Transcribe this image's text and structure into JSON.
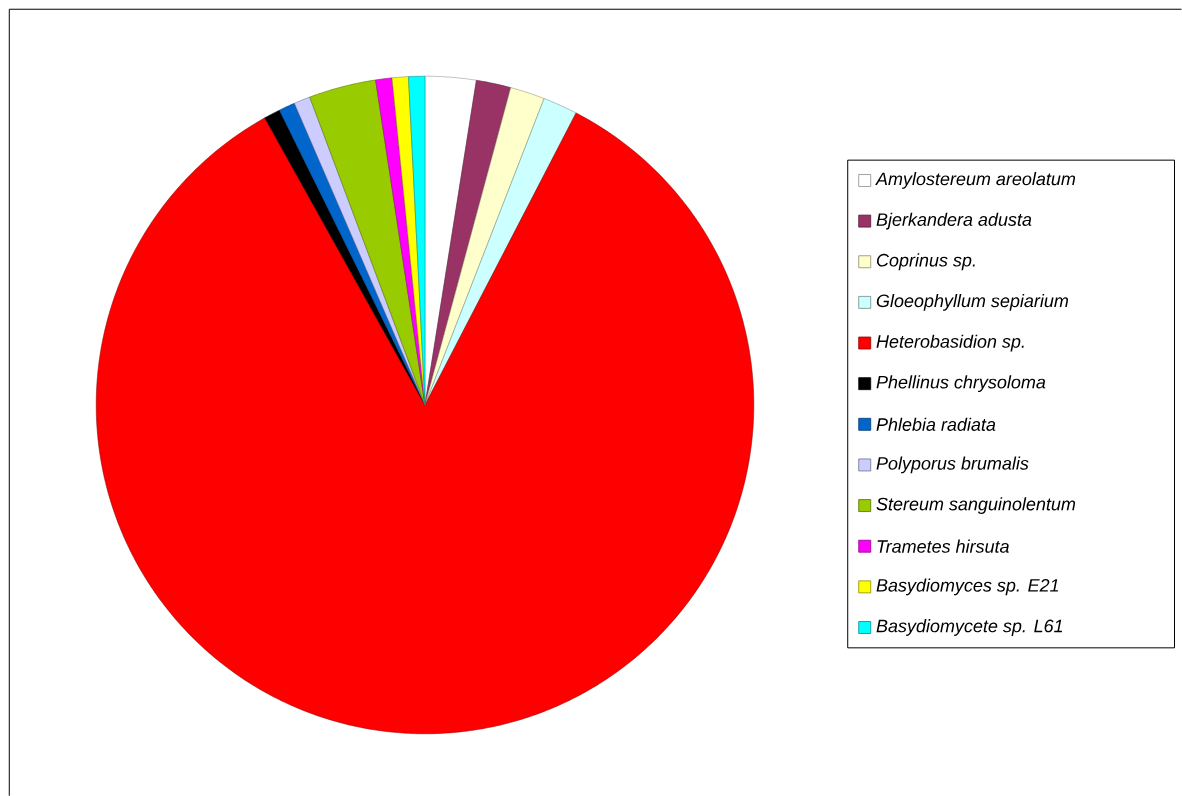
{
  "chart_data": {
    "type": "pie",
    "legend": "right",
    "categories": [
      "Amylostereum areolatum",
      "Bjerkandera adusta",
      "Coprinus sp.",
      "Gloeophyllum sepiarium",
      "Heterobasidion sp.",
      "Phellinus chrysoloma",
      "Phlebia radiata",
      "Polyporus brumalis",
      "Stereum sanguinolentum",
      "Trametes hirsuta",
      "Basydiomyces sp. E21",
      "Basydiomycete sp. L61"
    ],
    "values": [
      2.5,
      1.7,
      1.7,
      1.7,
      84.3,
      0.8,
      0.8,
      0.8,
      3.3,
      0.8,
      0.8,
      0.8
    ],
    "colors": [
      "#ffffff",
      "#993366",
      "#ffffcc",
      "#ccffff",
      "#ff0000",
      "#000000",
      "#0066cc",
      "#ccccff",
      "#99cc00",
      "#ff00ff",
      "#ffff00",
      "#00ffff"
    ]
  }
}
